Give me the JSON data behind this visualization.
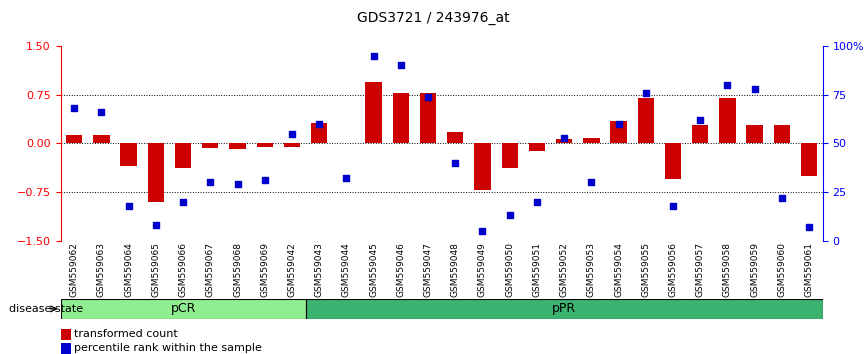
{
  "title": "GDS3721 / 243976_at",
  "samples": [
    "GSM559062",
    "GSM559063",
    "GSM559064",
    "GSM559065",
    "GSM559066",
    "GSM559067",
    "GSM559068",
    "GSM559069",
    "GSM559042",
    "GSM559043",
    "GSM559044",
    "GSM559045",
    "GSM559046",
    "GSM559047",
    "GSM559048",
    "GSM559049",
    "GSM559050",
    "GSM559051",
    "GSM559052",
    "GSM559053",
    "GSM559054",
    "GSM559055",
    "GSM559056",
    "GSM559057",
    "GSM559058",
    "GSM559059",
    "GSM559060",
    "GSM559061"
  ],
  "bar_values": [
    0.13,
    0.13,
    -0.35,
    -0.9,
    -0.38,
    -0.07,
    -0.08,
    -0.05,
    -0.05,
    0.32,
    0.0,
    0.95,
    0.78,
    0.78,
    0.18,
    -0.72,
    -0.38,
    -0.12,
    0.07,
    0.08,
    0.35,
    0.7,
    -0.55,
    0.28,
    0.7,
    0.28,
    0.28,
    -0.5
  ],
  "dot_values": [
    68,
    66,
    18,
    8,
    20,
    30,
    29,
    31,
    55,
    60,
    32,
    95,
    90,
    74,
    40,
    5,
    13,
    20,
    53,
    30,
    60,
    76,
    18,
    62,
    80,
    78,
    22,
    7
  ],
  "groups": {
    "pCR": [
      0,
      8
    ],
    "pPR": [
      9,
      27
    ]
  },
  "ylim": [
    -1.5,
    1.5
  ],
  "right_ylim": [
    0,
    100
  ],
  "right_yticks": [
    0,
    25,
    50,
    75,
    100
  ],
  "left_yticks": [
    -1.5,
    -0.75,
    0,
    0.75,
    1.5
  ],
  "bar_color": "#cc0000",
  "dot_color": "#0000cc",
  "pcr_color": "#90ee90",
  "ppr_color": "#3cb371",
  "axis_bg": "#d3d3d3",
  "legend_bar_label": "transformed count",
  "legend_dot_label": "percentile rank within the sample"
}
